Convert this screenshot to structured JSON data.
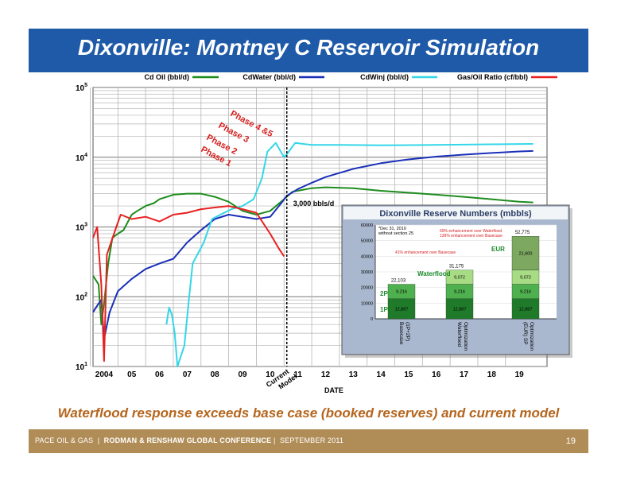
{
  "slide": {
    "title": "Dixonville: Montney C Reservoir Simulation",
    "caption": "Waterflood response exceeds base case (booked reserves) and current model",
    "footer_company": "PACE OIL & GAS",
    "footer_conference": "RODMAN & RENSHAW GLOBAL CONFERENCE",
    "footer_date": "SEPTEMBER 2011",
    "page_number": "19",
    "colors": {
      "title_bar": "#1f5aa8",
      "footer_bar": "#b08d57",
      "caption": "#b5651d"
    }
  },
  "chart_data": [
    {
      "type": "line",
      "scale": "log",
      "ylim": [
        10,
        100000
      ],
      "xlim": [
        2003.6,
        2020.0
      ],
      "ytick_bases": [
        "10",
        "10",
        "10",
        "10",
        "10"
      ],
      "ytick_exps": [
        "1",
        "2",
        "3",
        "4",
        "5"
      ],
      "yticks": [
        10,
        100,
        1000,
        10000,
        100000
      ],
      "xticks": [
        2004,
        2005,
        2006,
        2007,
        2008,
        2009,
        2010,
        2011,
        2012,
        2013,
        2014,
        2015,
        2016,
        2017,
        2018,
        2019
      ],
      "xtick_labels": [
        "2004",
        "05",
        "06",
        "07",
        "08",
        "09",
        "10",
        "11",
        "12",
        "13",
        "14",
        "15",
        "16",
        "17",
        "18",
        "19"
      ],
      "xlabel": "DATE",
      "current_model_x": 2010.6,
      "current_model_label": [
        "Current",
        "Model"
      ],
      "rate_label": "3,000 bbls/d",
      "phase_labels": [
        "Phase 1",
        "Phase 2",
        "Phase 3",
        "Phase 4 &5"
      ],
      "series": [
        {
          "name": "Cd Oil (bbl/d)",
          "color": "#1e8c1e",
          "points": [
            [
              2003.6,
              200
            ],
            [
              2003.8,
              150
            ],
            [
              2003.9,
              40
            ],
            [
              2004.0,
              80
            ],
            [
              2004.15,
              300
            ],
            [
              2004.3,
              700
            ],
            [
              2004.5,
              800
            ],
            [
              2004.7,
              900
            ],
            [
              2005.0,
              1500
            ],
            [
              2005.2,
              1700
            ],
            [
              2005.5,
              2000
            ],
            [
              2005.8,
              2200
            ],
            [
              2006.0,
              2500
            ],
            [
              2006.5,
              2900
            ],
            [
              2007.0,
              3000
            ],
            [
              2007.5,
              3000
            ],
            [
              2008.0,
              2700
            ],
            [
              2008.5,
              2300
            ],
            [
              2009.0,
              1700
            ],
            [
              2009.5,
              1500
            ],
            [
              2010.0,
              1700
            ],
            [
              2010.5,
              2500
            ],
            [
              2010.8,
              3200
            ],
            [
              2011.5,
              3600
            ],
            [
              2012.0,
              3700
            ],
            [
              2013.0,
              3600
            ],
            [
              2014.0,
              3300
            ],
            [
              2015.0,
              3100
            ],
            [
              2016.0,
              2900
            ],
            [
              2017.0,
              2700
            ],
            [
              2018.0,
              2500
            ],
            [
              2019.0,
              2300
            ],
            [
              2019.5,
              2250
            ]
          ]
        },
        {
          "name": "CdWater (bbl/d)",
          "color": "#1a2fb8",
          "points": [
            [
              2003.6,
              60
            ],
            [
              2003.8,
              80
            ],
            [
              2003.9,
              90
            ],
            [
              2004.0,
              25
            ],
            [
              2004.2,
              60
            ],
            [
              2004.5,
              120
            ],
            [
              2005.0,
              180
            ],
            [
              2005.5,
              250
            ],
            [
              2006.0,
              300
            ],
            [
              2006.5,
              350
            ],
            [
              2007.0,
              600
            ],
            [
              2007.5,
              900
            ],
            [
              2008.0,
              1300
            ],
            [
              2008.5,
              1500
            ],
            [
              2009.0,
              1400
            ],
            [
              2009.5,
              1300
            ],
            [
              2010.0,
              1400
            ],
            [
              2010.4,
              2200
            ],
            [
              2010.6,
              2800
            ],
            [
              2011.0,
              3500
            ],
            [
              2011.5,
              4300
            ],
            [
              2012.0,
              5200
            ],
            [
              2013.0,
              6800
            ],
            [
              2014.0,
              8200
            ],
            [
              2015.0,
              9300
            ],
            [
              2016.0,
              10200
            ],
            [
              2017.0,
              10900
            ],
            [
              2018.0,
              11500
            ],
            [
              2019.0,
              12100
            ],
            [
              2019.5,
              12300
            ]
          ]
        },
        {
          "name": "CdWinj (bbl/d)",
          "color": "#33d6e8",
          "points": [
            [
              2006.25,
              40
            ],
            [
              2006.35,
              70
            ],
            [
              2006.45,
              55
            ],
            [
              2006.55,
              30
            ],
            [
              2006.65,
              0
            ],
            [
              2006.9,
              20
            ],
            [
              2007.05,
              80
            ],
            [
              2007.2,
              300
            ],
            [
              2007.6,
              600
            ],
            [
              2007.9,
              1300
            ],
            [
              2008.2,
              1500
            ],
            [
              2008.6,
              1800
            ],
            [
              2009.0,
              2000
            ],
            [
              2009.4,
              2500
            ],
            [
              2009.7,
              5000
            ],
            [
              2009.9,
              12000
            ],
            [
              2010.2,
              16000
            ],
            [
              2010.5,
              10000
            ],
            [
              2010.6,
              11000
            ],
            [
              2010.9,
              16000
            ],
            [
              2011.5,
              15000
            ],
            [
              2012.5,
              15000
            ],
            [
              2014.0,
              14800
            ],
            [
              2016.0,
              15000
            ],
            [
              2018.0,
              15300
            ],
            [
              2019.5,
              15500
            ]
          ]
        },
        {
          "name": "Gas/Oil Ratio (cf/bbl)",
          "color": "#e82020",
          "points": [
            [
              2003.6,
              700
            ],
            [
              2003.75,
              1000
            ],
            [
              2003.9,
              150
            ],
            [
              2004.0,
              12
            ],
            [
              2004.1,
              400
            ],
            [
              2004.4,
              900
            ],
            [
              2004.6,
              1500
            ],
            [
              2005.0,
              1300
            ],
            [
              2005.5,
              1400
            ],
            [
              2006.0,
              1200
            ],
            [
              2006.5,
              1500
            ],
            [
              2007.0,
              1600
            ],
            [
              2007.5,
              1800
            ],
            [
              2008.0,
              1900
            ],
            [
              2008.5,
              2000
            ],
            [
              2009.0,
              1800
            ],
            [
              2009.5,
              1600
            ],
            [
              2010.0,
              800
            ],
            [
              2010.3,
              500
            ],
            [
              2010.5,
              380
            ]
          ]
        }
      ]
    },
    {
      "type": "bar",
      "stacked": true,
      "title": "Dixonville Reserve Numbers (mbbls)",
      "ylim": [
        0,
        60000
      ],
      "yticks": [
        0,
        10000,
        20000,
        30000,
        40000,
        50000,
        60000
      ],
      "categories": [
        "Basecase (1P+2P)",
        "Waterflood Optimization",
        "(EUR) SP Optimization"
      ],
      "category_lines": [
        [
          "Basecase",
          "(1P+2P)"
        ],
        [
          "Waterflood",
          "Optimization"
        ],
        [
          "(EUR) SP",
          "Optimization"
        ]
      ],
      "series": [
        {
          "name": "1P",
          "color": "#1f7a2a",
          "values": [
            12887,
            12887,
            12887
          ],
          "labels": [
            "12,887",
            "12,887",
            "12,887"
          ]
        },
        {
          "name": "2P",
          "color": "#4fb04f",
          "values": [
            9216,
            9216,
            9216
          ],
          "labels": [
            "9,216",
            "9,216",
            "9,216"
          ]
        },
        {
          "name": "Waterflood",
          "color": "#a7dc84",
          "values": [
            0,
            9072,
            9072
          ],
          "labels": [
            "",
            "9,072",
            "9,072"
          ]
        },
        {
          "name": "EUR",
          "color": "#7da860",
          "values": [
            0,
            0,
            21600
          ],
          "labels": [
            "",
            "",
            "21,600"
          ]
        }
      ],
      "totals": [
        "22,103",
        "31,175",
        "52,775"
      ],
      "note_lines": [
        "*Dec 31, 2010",
        "without section 25"
      ],
      "annotations": [
        "41% enhancement over Basecase",
        "69% enhancement over Waterflood",
        "139% enhancement over Basecase"
      ]
    }
  ]
}
